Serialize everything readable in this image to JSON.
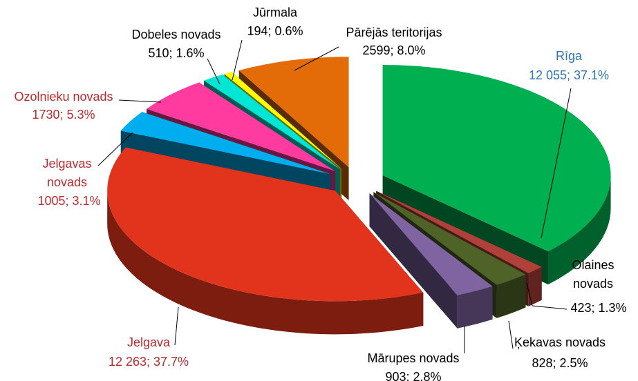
{
  "chart_data": {
    "type": "pie",
    "categories": [
      "Rīga",
      "Olaines novads",
      "Ķekavas novads",
      "Mārupes novads",
      "Jelgava",
      "Jelgavas novads",
      "Ozolnieku novads",
      "Dobeles novads",
      "Jūrmala",
      "Pārējās teritorijas"
    ],
    "values": [
      12055,
      423,
      828,
      903,
      12263,
      1005,
      1730,
      510,
      194,
      2599
    ],
    "value_labels": [
      "12 055; 37.1%",
      "423; 1.3%",
      "828; 2.5%",
      "903; 2.8%",
      "12 263; 37.7%",
      "1005; 3.1%",
      "1730; 5.3%",
      "510; 1.6%",
      "194; 0.6%",
      "2599; 8.0%"
    ],
    "colors": [
      "#00b050",
      "#b0403a",
      "#4f6228",
      "#8064a2",
      "#e2341c",
      "#00aeef",
      "#ff3ba0",
      "#00e5d4",
      "#ffff00",
      "#e36c09"
    ],
    "label_colors": [
      "#2e75b6",
      "#000000",
      "#000000",
      "#000000",
      "#c0282d",
      "#c0282d",
      "#c0282d",
      "#000000",
      "#000000",
      "#000000"
    ]
  }
}
